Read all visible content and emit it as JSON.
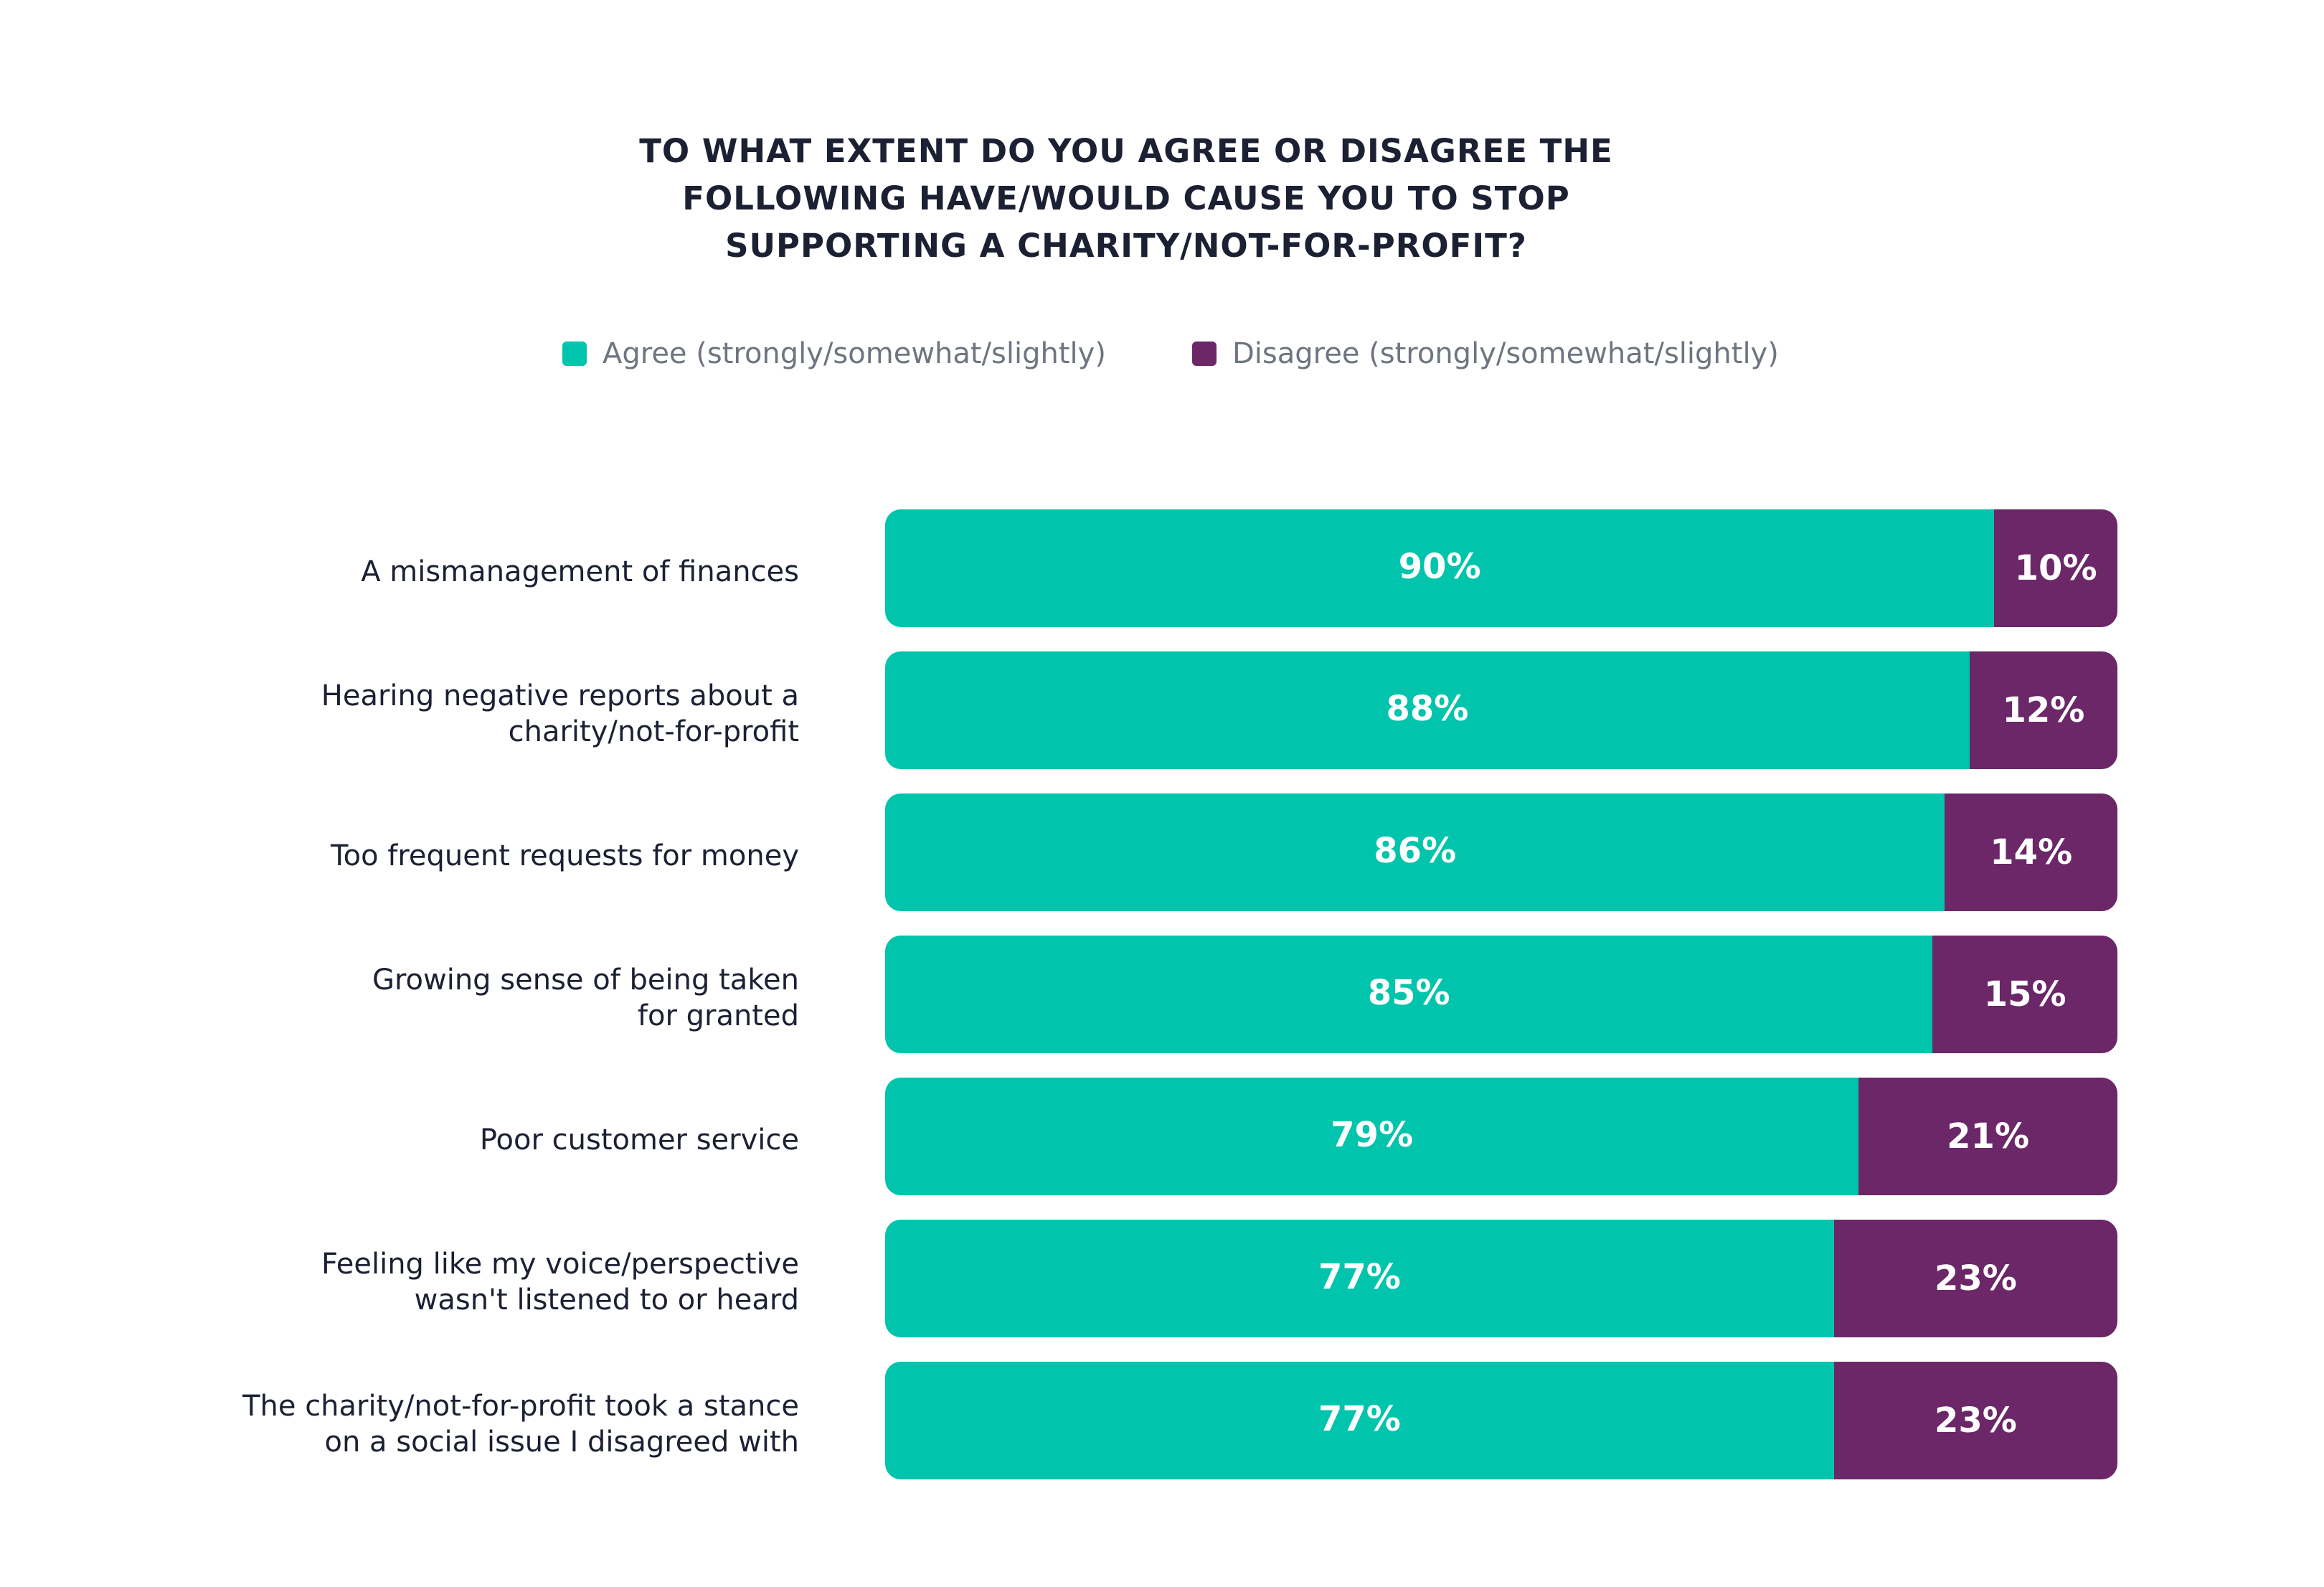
{
  "chart_data": {
    "type": "bar",
    "orientation": "horizontal",
    "stacked": true,
    "title_lines": [
      "TO WHAT EXTENT DO YOU AGREE OR DISAGREE THE",
      "FOLLOWING HAVE/WOULD CAUSE YOU TO STOP",
      "SUPPORTING A CHARITY/NOT-FOR-PROFIT?"
    ],
    "legend_position": "top-center",
    "categories": [
      [
        "A mismanagement of finances"
      ],
      [
        "Hearing negative reports about a",
        "charity/not-for-profit"
      ],
      [
        "Too frequent requests for money"
      ],
      [
        "Growing sense of being taken",
        "for granted"
      ],
      [
        "Poor customer service"
      ],
      [
        "Feeling like my voice/perspective",
        "wasn't listened to or heard"
      ],
      [
        "The charity/not-for-profit took a stance",
        "on a social issue I disagreed with"
      ]
    ],
    "series": [
      {
        "name": "Agree (strongly/somewhat/slightly)",
        "color": "#00c4ab",
        "values": [
          90,
          88,
          86,
          85,
          79,
          77,
          77
        ],
        "labels": [
          "90%",
          "88%",
          "86%",
          "85%",
          "79%",
          "77%",
          "77%"
        ]
      },
      {
        "name": "Disagree (strongly/somewhat/slightly)",
        "color": "#6b2768",
        "values": [
          10,
          12,
          14,
          15,
          21,
          23,
          23
        ],
        "labels": [
          "10%",
          "12%",
          "14%",
          "15%",
          "21%",
          "23%",
          "23%"
        ]
      }
    ],
    "xlim": [
      0,
      100
    ]
  }
}
